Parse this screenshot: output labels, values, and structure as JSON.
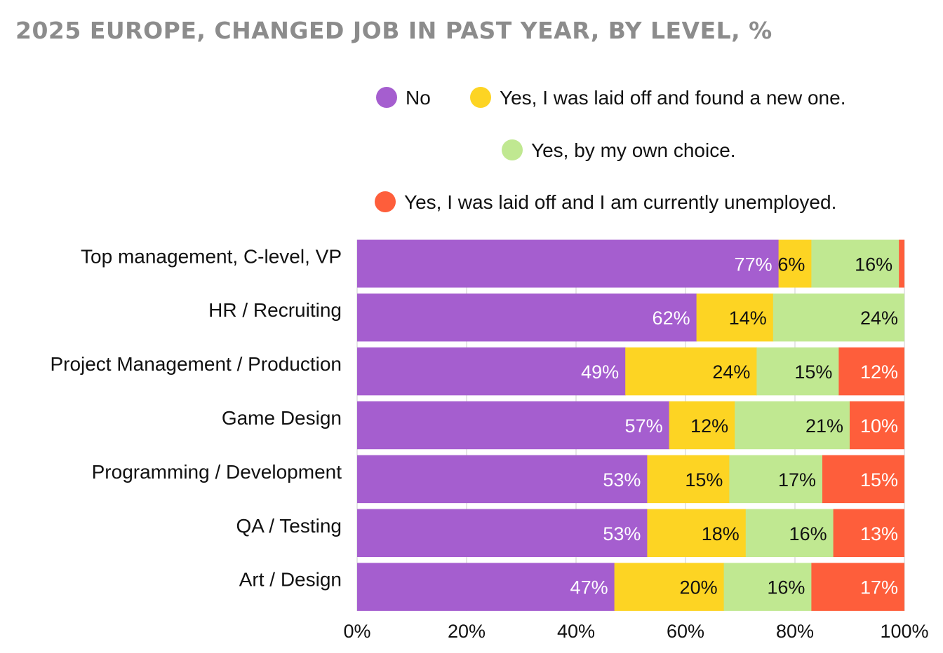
{
  "chart_data": {
    "type": "bar",
    "orientation": "horizontal",
    "stacked": true,
    "title": "2025 EUROPE, CHANGED JOB IN PAST YEAR, BY LEVEL, %",
    "categories": [
      "Top management, C-level, VP",
      "HR / Recruiting",
      "Project Management / Production",
      "Game Design",
      "Programming / Development",
      "QA / Testing",
      "Art / Design"
    ],
    "series": [
      {
        "name": "No",
        "color": "#a55ecf",
        "label_color": "#ffffff",
        "values": [
          77,
          62,
          49,
          57,
          53,
          53,
          47
        ],
        "labels": [
          "77%",
          "62%",
          "49%",
          "57%",
          "53%",
          "53%",
          "47%"
        ]
      },
      {
        "name": "Yes, I was laid off and found a new one.",
        "color": "#fdd423",
        "label_color": "#111111",
        "values": [
          6,
          14,
          24,
          12,
          15,
          18,
          20
        ],
        "labels": [
          "6%",
          "14%",
          "24%",
          "12%",
          "15%",
          "18%",
          "20%"
        ]
      },
      {
        "name": "Yes, by my own choice.",
        "color": "#c0e891",
        "label_color": "#111111",
        "values": [
          16,
          24,
          15,
          21,
          17,
          16,
          16
        ],
        "labels": [
          "16%",
          "24%",
          "15%",
          "21%",
          "17%",
          "16%",
          "16%"
        ]
      },
      {
        "name": "Yes, I was laid off and I am currently unemployed.",
        "color": "#fe5e3b",
        "label_color": "#ffffff",
        "values": [
          1,
          0,
          12,
          10,
          15,
          13,
          17
        ],
        "labels": [
          "",
          "",
          "12%",
          "10%",
          "15%",
          "13%",
          "17%"
        ]
      }
    ],
    "xlim": [
      0,
      100
    ],
    "x_ticks": [
      0,
      20,
      40,
      60,
      80,
      100
    ],
    "x_tick_labels": [
      "0%",
      "20%",
      "40%",
      "60%",
      "80%",
      "100%"
    ],
    "xlabel": "",
    "ylabel": "",
    "grid": "vertical",
    "legend_position": "top-right"
  }
}
